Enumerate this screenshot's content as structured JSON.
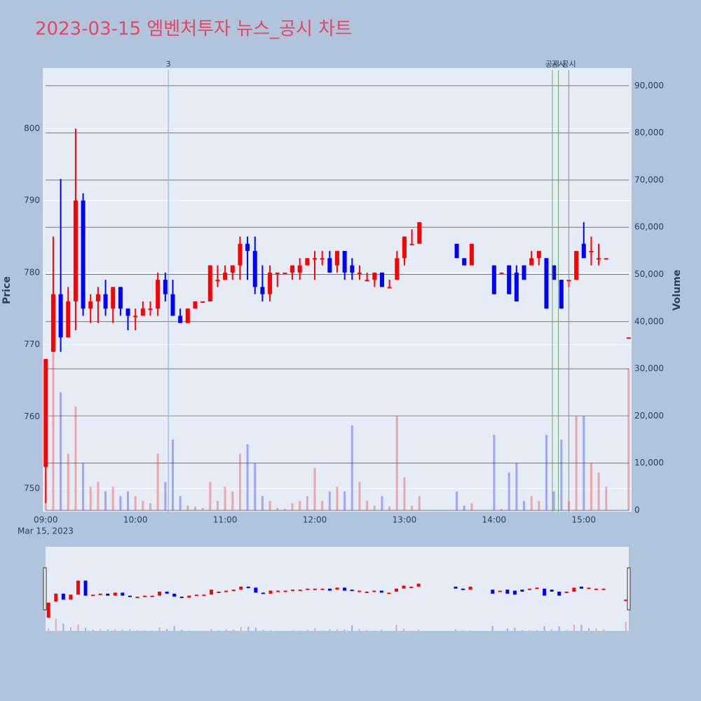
{
  "chart_data": {
    "type": "candlestick",
    "title": "2023-03-15 엠벤처투자 뉴스_공시 차트",
    "date_label": "Mar 15, 2023",
    "y_label": "Price",
    "y2_label": "Volume",
    "up_color": "#ff0000",
    "down_color": "#0000ff",
    "xlim": [
      "08:58",
      "15:32"
    ],
    "xticks": [
      "09:00",
      "10:00",
      "11:00",
      "12:00",
      "13:00",
      "14:00",
      "15:00"
    ],
    "ylim": [
      746.8,
      808.4
    ],
    "yticks": [
      750,
      760,
      770,
      780,
      790,
      800
    ],
    "y2lim": [
      -300,
      93760
    ],
    "y2ticks": [
      0,
      {
        "value": 10000,
        "label": "10,000"
      },
      {
        "value": 20000,
        "label": "20,000"
      },
      {
        "value": 30000,
        "label": "30,000"
      },
      {
        "value": 40000,
        "label": "40,000"
      },
      {
        "value": 50000,
        "label": "50,000"
      },
      {
        "value": 60000,
        "label": "60,000"
      },
      {
        "value": 70000,
        "label": "70,000"
      },
      {
        "value": 80000,
        "label": "80,000"
      },
      {
        "value": 90000,
        "label": "90,000"
      }
    ],
    "x": [
      "09:00",
      "09:05",
      "09:10",
      "09:15",
      "09:20",
      "09:25",
      "09:30",
      "09:35",
      "09:40",
      "09:45",
      "09:50",
      "09:55",
      "10:00",
      "10:05",
      "10:10",
      "10:15",
      "10:20",
      "10:25",
      "10:30",
      "10:35",
      "10:40",
      "10:45",
      "10:50",
      "10:55",
      "11:00",
      "11:05",
      "11:10",
      "11:15",
      "11:20",
      "11:25",
      "11:30",
      "11:35",
      "11:40",
      "11:45",
      "11:50",
      "11:55",
      "12:00",
      "12:05",
      "12:10",
      "12:15",
      "12:20",
      "12:25",
      "12:30",
      "12:35",
      "12:40",
      "12:45",
      "12:50",
      "12:55",
      "13:00",
      "13:05",
      "13:10",
      "13:35",
      "13:40",
      "13:45",
      "14:00",
      "14:05",
      "14:10",
      "14:15",
      "14:20",
      "14:25",
      "14:30",
      "14:35",
      "14:40",
      "14:45",
      "14:50",
      "14:55",
      "15:00",
      "15:05",
      "15:10",
      "15:15",
      "15:30"
    ],
    "open": [
      753,
      769,
      777,
      771,
      776,
      790,
      775,
      776,
      777,
      775,
      778,
      775,
      774,
      774,
      775,
      775,
      779,
      777,
      774,
      773,
      775,
      776,
      776,
      779,
      779,
      780,
      781,
      784,
      783,
      778,
      777,
      780,
      780,
      780,
      780,
      781,
      782,
      782,
      782,
      781,
      783,
      781,
      780,
      779,
      779,
      780,
      778,
      779,
      782,
      784,
      784,
      784,
      782,
      781,
      781,
      780,
      781,
      780,
      781,
      781,
      782,
      782,
      781,
      779,
      779,
      779,
      784,
      783,
      782,
      782,
      771
    ],
    "high": [
      768,
      785,
      793,
      778,
      800,
      791,
      777,
      778,
      779,
      778,
      778,
      775,
      775,
      776,
      776,
      780,
      780,
      779,
      775,
      775,
      776,
      776,
      781,
      781,
      781,
      781,
      785,
      785,
      785,
      781,
      781,
      780,
      780,
      781,
      782,
      782,
      783,
      783,
      783,
      783,
      783,
      782,
      781,
      780,
      780,
      780,
      779,
      783,
      785,
      786,
      787,
      784,
      782,
      784,
      781,
      780,
      781,
      781,
      781,
      783,
      783,
      782,
      781,
      779,
      779,
      783,
      787,
      785,
      784,
      782,
      771
    ],
    "low": [
      748,
      769,
      769,
      771,
      772,
      774,
      773,
      773,
      774,
      773,
      774,
      772,
      772,
      774,
      774,
      774,
      776,
      774,
      773,
      773,
      775,
      776,
      776,
      778,
      779,
      779,
      779,
      779,
      777,
      776,
      776,
      778,
      780,
      779,
      779,
      781,
      779,
      781,
      780,
      780,
      779,
      779,
      779,
      779,
      778,
      778,
      778,
      779,
      781,
      784,
      784,
      782,
      781,
      781,
      777,
      780,
      777,
      776,
      779,
      781,
      781,
      775,
      779,
      775,
      778,
      779,
      782,
      781,
      781,
      782,
      771
    ],
    "close": [
      768,
      777,
      771,
      776,
      790,
      775,
      776,
      777,
      775,
      778,
      775,
      774,
      774,
      775,
      775,
      779,
      777,
      774,
      773,
      775,
      776,
      776,
      781,
      779,
      780,
      781,
      784,
      783,
      778,
      777,
      780,
      780,
      780,
      781,
      781,
      782,
      782,
      782,
      780,
      783,
      780,
      780,
      780,
      779,
      780,
      778,
      778,
      782,
      785,
      784,
      787,
      782,
      781,
      784,
      777,
      780,
      777,
      776,
      779,
      782,
      783,
      775,
      779,
      775,
      779,
      783,
      782,
      783,
      782,
      782,
      771
    ],
    "volume": [
      8000,
      40000,
      25000,
      12000,
      22000,
      10000,
      5000,
      6000,
      4000,
      5000,
      3000,
      4000,
      3000,
      2000,
      1500,
      12000,
      6000,
      15000,
      3000,
      1000,
      800,
      500,
      6000,
      2000,
      5000,
      4000,
      12000,
      14000,
      10000,
      3000,
      2000,
      500,
      300,
      1500,
      2000,
      3000,
      9000,
      2000,
      4000,
      5000,
      4000,
      18000,
      6000,
      2000,
      1000,
      3000,
      800,
      20000,
      7000,
      1000,
      3000,
      4000,
      1000,
      1500,
      16000,
      300,
      8000,
      10000,
      2000,
      3000,
      2000,
      16000,
      4000,
      15000,
      2000,
      20000,
      20000,
      10000,
      8000,
      5000,
      30000
    ],
    "annotations": [
      {
        "x": "10:22",
        "text": "3",
        "color": "#8fa8e8"
      },
      {
        "x": "14:39",
        "text": "공시",
        "color": "#6aa86a"
      },
      {
        "x": "14:43",
        "text": "공시",
        "color": "#6aa86a"
      },
      {
        "x": "14:50",
        "text": "공시",
        "color": "#6aa86a"
      }
    ]
  }
}
